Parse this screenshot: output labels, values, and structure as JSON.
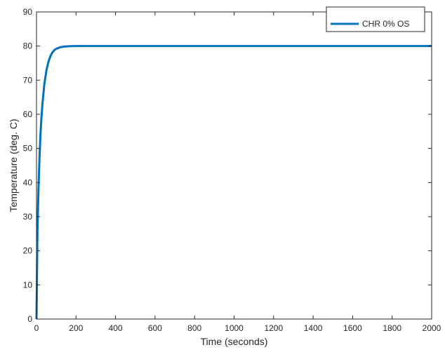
{
  "chart_data": {
    "type": "line",
    "xlabel": "Time (seconds)",
    "ylabel": "Temperature (deg. C)",
    "xlim": [
      0,
      2000
    ],
    "ylim": [
      0,
      90
    ],
    "xticks": [
      0,
      200,
      400,
      600,
      800,
      1000,
      1200,
      1400,
      1600,
      1800,
      2000
    ],
    "yticks": [
      0,
      10,
      20,
      30,
      40,
      50,
      60,
      70,
      80,
      90
    ],
    "grid": false,
    "legend_position": "top-right",
    "series": [
      {
        "name": "CHR 0% OS",
        "color": "#0072BD",
        "x": [
          0,
          5,
          10,
          15,
          20,
          25,
          30,
          40,
          50,
          60,
          70,
          80,
          90,
          100,
          120,
          140,
          160,
          180,
          200,
          300,
          500,
          1000,
          1500,
          2000
        ],
        "y": [
          0,
          26,
          38,
          47,
          54,
          59,
          63,
          69,
          72.8,
          75.3,
          77.0,
          78.1,
          78.8,
          79.2,
          79.65,
          79.85,
          79.94,
          79.97,
          80,
          80,
          80,
          80,
          80,
          80
        ]
      }
    ]
  }
}
